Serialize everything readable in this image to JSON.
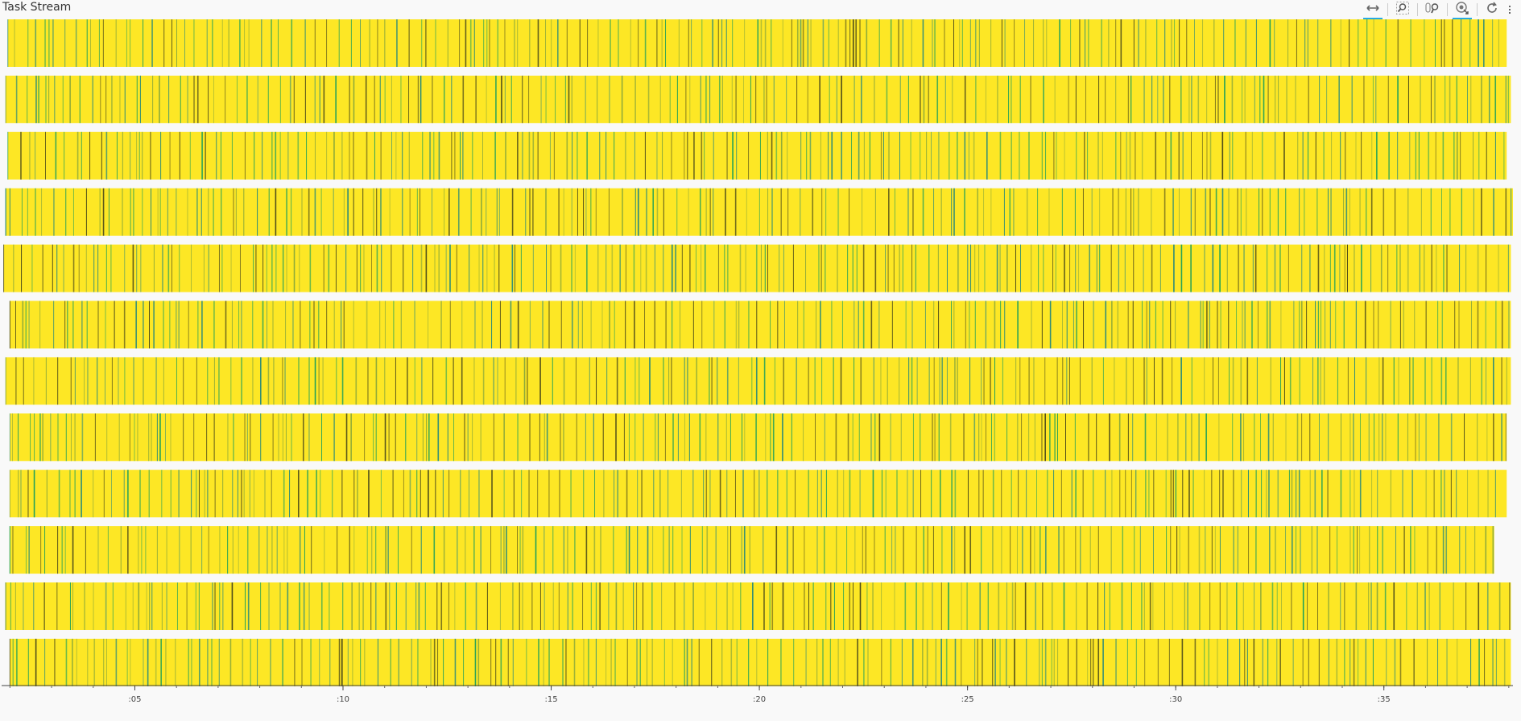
{
  "header": {
    "title": "Task Stream"
  },
  "toolbar": {
    "tools": [
      {
        "name": "pan-icon",
        "active": true
      },
      {
        "name": "box-zoom-icon",
        "active": false
      },
      {
        "name": "wheel-zoom-icon",
        "active": false
      },
      {
        "name": "tap-icon",
        "active": true
      },
      {
        "name": "reset-icon",
        "active": false
      }
    ]
  },
  "chart_data": {
    "type": "bar",
    "title": "Task Stream",
    "xlabel": "",
    "ylabel": "",
    "xlim": [
      1.8,
      38.1
    ],
    "x_tick_labels": [
      ":05",
      ":10",
      ":15",
      ":20",
      ":25",
      ":30",
      ":35"
    ],
    "x_tick_values": [
      5,
      10,
      15,
      20,
      25,
      30,
      35
    ],
    "worker_count": 12,
    "rows": [
      {
        "start": 1.95,
        "end": 37.95
      },
      {
        "start": 1.9,
        "end": 38.05
      },
      {
        "start": 1.95,
        "end": 37.95
      },
      {
        "start": 1.9,
        "end": 38.1
      },
      {
        "start": 1.85,
        "end": 38.05
      },
      {
        "start": 2.0,
        "end": 38.05
      },
      {
        "start": 1.9,
        "end": 38.05
      },
      {
        "start": 2.0,
        "end": 37.95
      },
      {
        "start": 2.0,
        "end": 37.95
      },
      {
        "start": 2.0,
        "end": 37.65
      },
      {
        "start": 1.9,
        "end": 38.05
      },
      {
        "start": 2.0,
        "end": 38.05
      }
    ],
    "colors": {
      "task_fill": "#fde725",
      "edge_dark": "#4a4a1a",
      "edge_green": "#21a05a",
      "edge_olive": "#8aa83a",
      "edge_teal": "#2a8a7a"
    },
    "grid": false,
    "legend": "none"
  }
}
